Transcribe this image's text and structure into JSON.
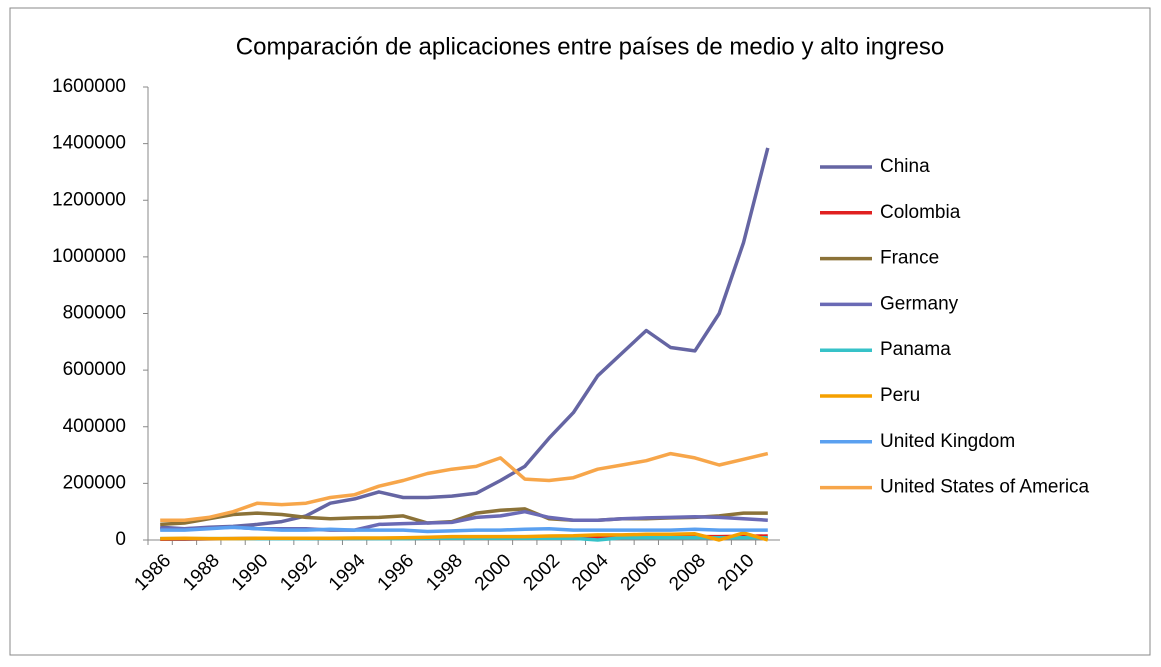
{
  "chart_data": {
    "type": "line",
    "title": "Comparación de aplicaciones entre países de medio y alto ingreso",
    "categories": [
      "1986",
      null,
      "1988",
      null,
      "1990",
      null,
      "1992",
      null,
      "1994",
      null,
      "1996",
      null,
      "1998",
      null,
      "2000",
      null,
      "2002",
      null,
      "2004",
      null,
      "2006",
      null,
      "2008",
      null,
      "2010",
      null
    ],
    "ylim": [
      0,
      1600000
    ],
    "yticks": [
      0,
      200000,
      400000,
      600000,
      800000,
      1000000,
      1200000,
      1400000,
      1600000
    ],
    "grid": false,
    "legend": "right",
    "series": [
      {
        "name": "China",
        "color": "#6565a3",
        "values": [
          45000,
          40000,
          45000,
          48000,
          55000,
          65000,
          85000,
          130000,
          145000,
          170000,
          150000,
          150000,
          155000,
          165000,
          210000,
          260000,
          360000,
          450000,
          580000,
          660000,
          740000,
          680000,
          668000,
          800000,
          1050000,
          1385000
        ]
      },
      {
        "name": "Colombia",
        "color": "#e02020",
        "values": [
          3000,
          3000,
          4000,
          5000,
          6000,
          6000,
          6000,
          5000,
          5000,
          6000,
          6000,
          7000,
          8000,
          8000,
          9000,
          9000,
          9000,
          9000,
          10000,
          10000,
          11000,
          12000,
          12000,
          12000,
          13000,
          14000
        ]
      },
      {
        "name": "France",
        "color": "#8b7238",
        "values": [
          55000,
          60000,
          75000,
          90000,
          95000,
          90000,
          80000,
          75000,
          78000,
          80000,
          85000,
          60000,
          65000,
          95000,
          105000,
          110000,
          75000,
          70000,
          70000,
          75000,
          75000,
          78000,
          80000,
          85000,
          95000,
          95000
        ]
      },
      {
        "name": "Germany",
        "color": "#6a6ab5",
        "values": [
          40000,
          40000,
          42000,
          45000,
          40000,
          40000,
          40000,
          35000,
          35000,
          55000,
          58000,
          60000,
          62000,
          80000,
          85000,
          100000,
          80000,
          70000,
          70000,
          75000,
          78000,
          80000,
          82000,
          80000,
          75000,
          70000
        ]
      },
      {
        "name": "Panama",
        "color": "#36c2c8",
        "values": [
          5000,
          5000,
          5000,
          5000,
          5000,
          5000,
          5000,
          5000,
          5000,
          5000,
          5000,
          6000,
          6000,
          6000,
          6000,
          6000,
          6000,
          6000,
          0,
          8000,
          8000,
          8000,
          8000,
          8000,
          8000,
          8000
        ]
      },
      {
        "name": "Peru",
        "color": "#f5a000",
        "values": [
          5000,
          6000,
          5000,
          5000,
          6000,
          6000,
          6000,
          6000,
          7000,
          7000,
          8000,
          10000,
          12000,
          12000,
          12000,
          12000,
          14000,
          15000,
          18000,
          18000,
          20000,
          20000,
          22000,
          0,
          25000,
          0
        ]
      },
      {
        "name": "United Kingdom",
        "color": "#5aa0f0",
        "values": [
          35000,
          35000,
          40000,
          45000,
          40000,
          35000,
          35000,
          38000,
          35000,
          35000,
          35000,
          30000,
          32000,
          35000,
          35000,
          38000,
          40000,
          35000,
          35000,
          35000,
          35000,
          35000,
          38000,
          35000,
          35000,
          35000
        ]
      },
      {
        "name": "United States of America",
        "color": "#f7a64a",
        "values": [
          70000,
          70000,
          80000,
          100000,
          130000,
          125000,
          130000,
          150000,
          160000,
          190000,
          210000,
          235000,
          250000,
          260000,
          290000,
          215000,
          210000,
          220000,
          250000,
          265000,
          280000,
          305000,
          290000,
          265000,
          285000,
          305000
        ]
      }
    ]
  }
}
